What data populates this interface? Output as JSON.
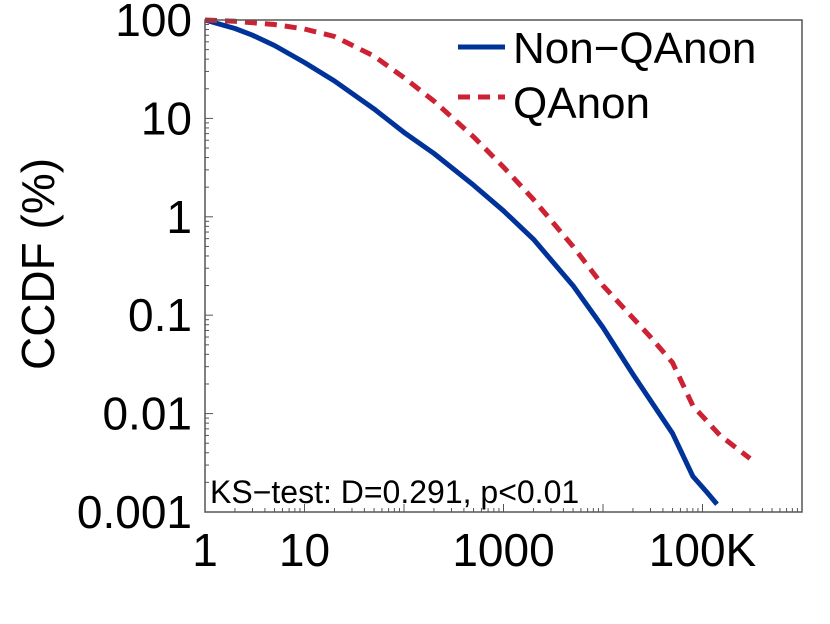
{
  "chart_data": {
    "type": "line",
    "title": "",
    "xlabel": "",
    "ylabel": "CCDF (%)",
    "xscale": "log",
    "yscale": "log",
    "xlim": [
      1,
      1000000
    ],
    "ylim": [
      0.001,
      100
    ],
    "x_ticks": [
      {
        "value": 1,
        "label": "1"
      },
      {
        "value": 10,
        "label": "10"
      },
      {
        "value": 1000,
        "label": "1000"
      },
      {
        "value": 100000,
        "label": "100K"
      }
    ],
    "y_ticks": [
      {
        "value": 100,
        "label": "100"
      },
      {
        "value": 10,
        "label": "10"
      },
      {
        "value": 1,
        "label": "1"
      },
      {
        "value": 0.1,
        "label": "0.1"
      },
      {
        "value": 0.01,
        "label": "0.01"
      },
      {
        "value": 0.001,
        "label": "0.001"
      }
    ],
    "legend": {
      "placement": "top-right",
      "entries": [
        "Non−QAnon",
        "QAnon"
      ]
    },
    "annotation": "KS−test: D=0.291, p<0.01",
    "series": [
      {
        "name": "Non−QAnon",
        "color": "#003399",
        "style": "solid",
        "points": [
          [
            1,
            100
          ],
          [
            2,
            82
          ],
          [
            3,
            70
          ],
          [
            5,
            55
          ],
          [
            10,
            37
          ],
          [
            20,
            24
          ],
          [
            50,
            12.5
          ],
          [
            100,
            7.2
          ],
          [
            200,
            4.4
          ],
          [
            500,
            2.1
          ],
          [
            1000,
            1.15
          ],
          [
            2000,
            0.59
          ],
          [
            5000,
            0.2
          ],
          [
            10000,
            0.075
          ],
          [
            20000,
            0.025
          ],
          [
            50000,
            0.0063
          ],
          [
            80000,
            0.0023
          ],
          [
            110000,
            0.0016
          ],
          [
            140000,
            0.0012
          ]
        ]
      },
      {
        "name": "QAnon",
        "color": "#cc2233",
        "style": "dashed",
        "points": [
          [
            1,
            100
          ],
          [
            2,
            97
          ],
          [
            5,
            90
          ],
          [
            10,
            81
          ],
          [
            20,
            68
          ],
          [
            50,
            43
          ],
          [
            100,
            26
          ],
          [
            200,
            15
          ],
          [
            500,
            6.5
          ],
          [
            1000,
            3.2
          ],
          [
            2000,
            1.5
          ],
          [
            5000,
            0.5
          ],
          [
            10000,
            0.2
          ],
          [
            30000,
            0.06
          ],
          [
            50000,
            0.033
          ],
          [
            80000,
            0.012
          ],
          [
            150000,
            0.006
          ],
          [
            300000,
            0.0035
          ]
        ]
      }
    ]
  }
}
